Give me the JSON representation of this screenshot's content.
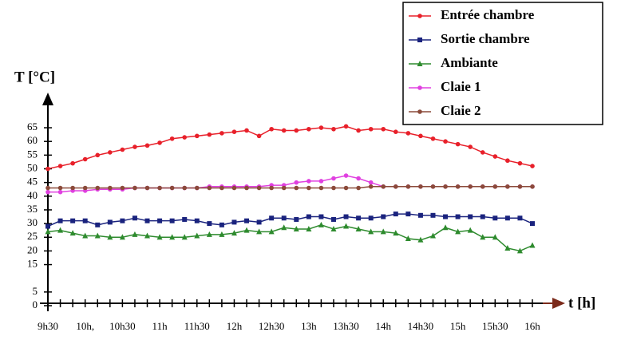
{
  "chart_data": {
    "type": "line",
    "y_label": "T [°C]",
    "x_label": "t  [h]",
    "categories": [
      "9h30",
      null,
      null,
      "10h,",
      null,
      null,
      "10h30",
      null,
      null,
      "11h",
      null,
      null,
      "11h30",
      null,
      null,
      "12h",
      null,
      null,
      "12h30",
      null,
      null,
      "13h",
      null,
      null,
      "13h30",
      null,
      null,
      "14h",
      null,
      null,
      "14h30",
      null,
      null,
      "15h",
      null,
      null,
      "15h30",
      null,
      null,
      "16h"
    ],
    "ylim": [
      0,
      75
    ],
    "yticks": [
      0,
      5,
      15,
      20,
      25,
      30,
      35,
      40,
      45,
      50,
      55,
      60,
      65
    ],
    "series": [
      {
        "name": "Entrée chambre",
        "color": "#e8202a",
        "marker": "circle",
        "values": [
          50,
          51,
          52,
          53.5,
          55,
          56,
          57,
          58,
          58.5,
          59.5,
          61,
          61.5,
          62,
          62.5,
          63,
          63.5,
          64,
          62,
          64.5,
          64,
          64,
          64.5,
          65,
          64.5,
          65.5,
          64,
          64.5,
          64.5,
          63.5,
          63,
          62,
          61,
          60,
          59,
          58,
          56,
          54.5,
          53,
          52,
          51
        ]
      },
      {
        "name": "Sortie chambre",
        "color": "#1a237e",
        "marker": "square",
        "values": [
          29,
          31,
          31,
          31,
          29.5,
          30.5,
          31,
          32,
          31,
          31,
          31,
          31.5,
          31,
          30,
          29.5,
          30.5,
          31,
          30.5,
          32,
          32,
          31.5,
          32.5,
          32.5,
          31.5,
          32.5,
          32,
          32,
          32.5,
          33.5,
          33.5,
          33,
          33,
          32.5,
          32.5,
          32.5,
          32.5,
          32,
          32,
          32,
          30
        ]
      },
      {
        "name": "Ambiante",
        "color": "#2e8b2e",
        "marker": "triangle",
        "values": [
          27,
          27.5,
          26.5,
          25.5,
          25.5,
          25,
          25,
          26,
          25.5,
          25,
          25,
          25,
          25.5,
          26,
          26,
          26.5,
          27.5,
          27,
          27,
          28.5,
          28,
          28,
          29.5,
          28,
          29,
          28,
          27,
          27,
          26.5,
          24.5,
          24,
          25.5,
          28.5,
          27,
          27.5,
          25,
          25,
          21,
          20,
          22
        ]
      },
      {
        "name": "Claie 1",
        "color": "#e040e0",
        "marker": "circle",
        "values": [
          41.5,
          41.5,
          42,
          42,
          42.5,
          42.5,
          42.5,
          43,
          43,
          43,
          43,
          43,
          43,
          43.5,
          43.5,
          43.5,
          43.5,
          43.5,
          44,
          44,
          45,
          45.5,
          45.5,
          46.5,
          47.5,
          46.5,
          45,
          43.5,
          43.5,
          43.5,
          43.5,
          43.5,
          43.5,
          43.5,
          43.5,
          43.5,
          43.5,
          43.5,
          43.5,
          43.5
        ]
      },
      {
        "name": "Claie 2",
        "color": "#8b4a3a",
        "marker": "circle",
        "values": [
          43,
          43,
          43,
          43,
          43,
          43,
          43,
          43,
          43,
          43,
          43,
          43,
          43,
          43,
          43,
          43,
          43,
          43,
          43,
          43,
          43,
          43,
          43,
          43,
          43,
          43,
          43.5,
          43.5,
          43.5,
          43.5,
          43.5,
          43.5,
          43.5,
          43.5,
          43.5,
          43.5,
          43.5,
          43.5,
          43.5,
          43.5
        ]
      }
    ]
  }
}
